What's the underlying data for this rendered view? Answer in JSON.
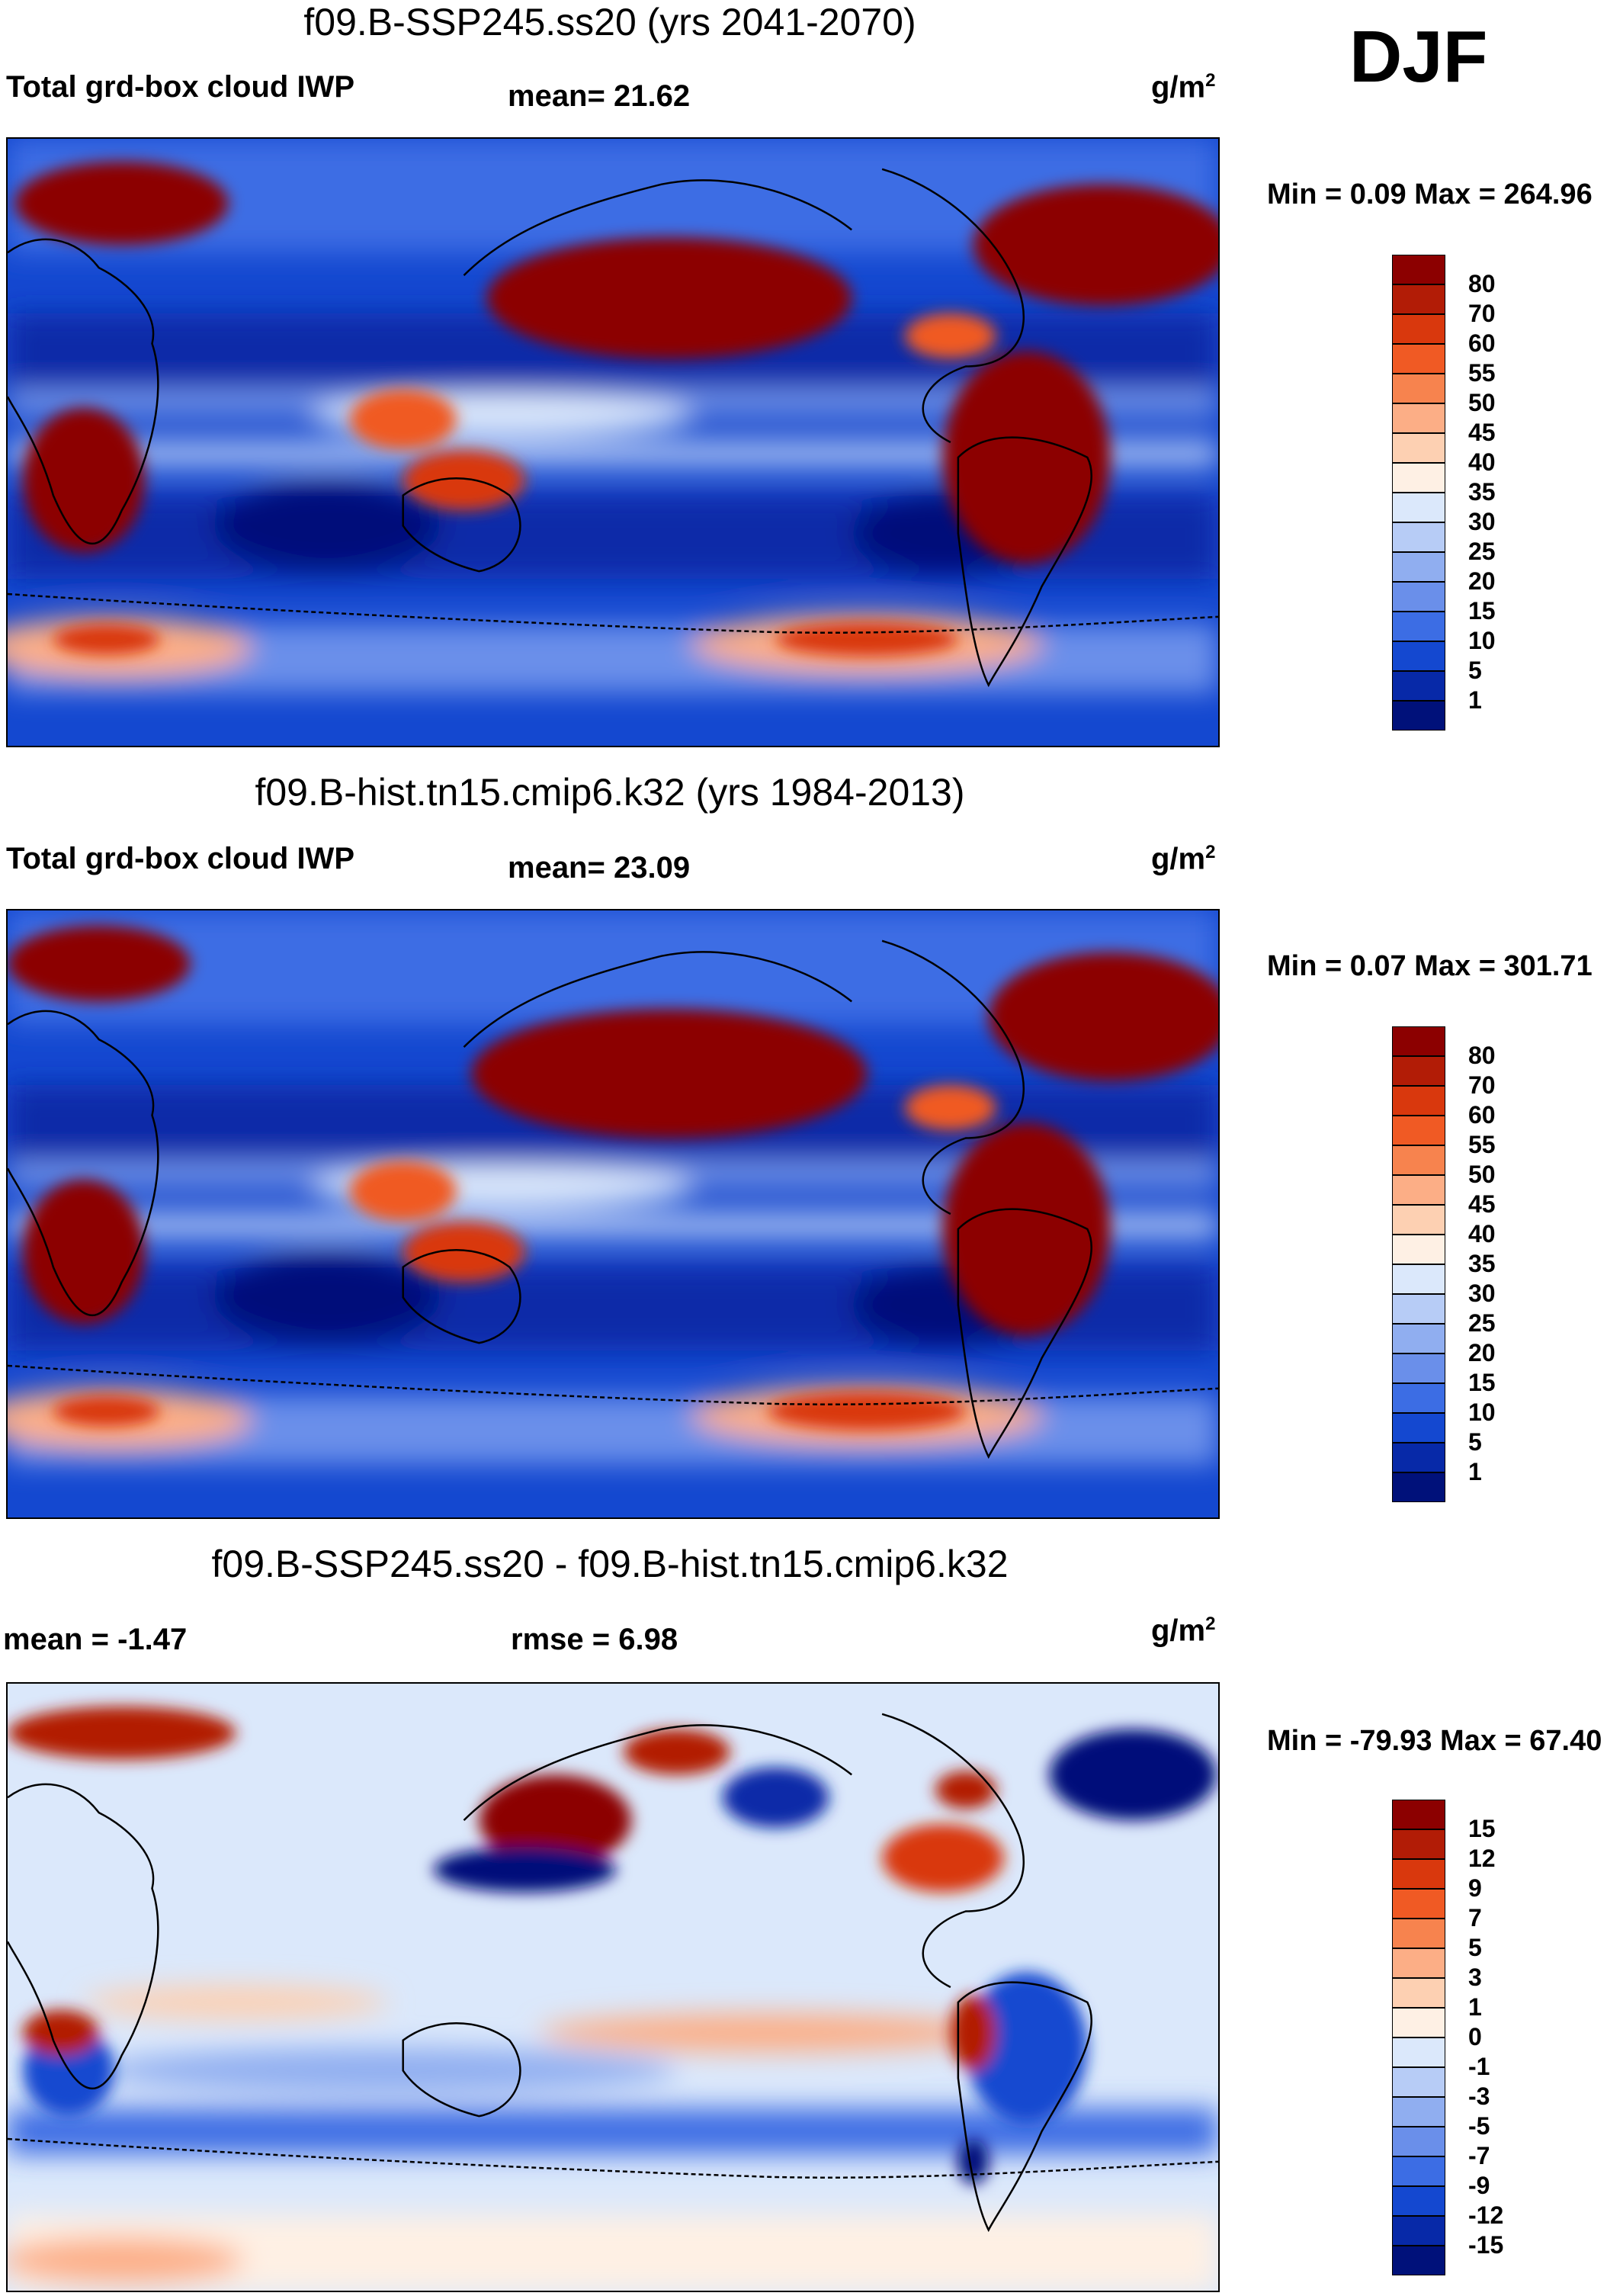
{
  "season": "DJF",
  "units_label": "g/m",
  "units_sup": "2",
  "panels": [
    {
      "title": "f09.B-SSP245.ss20 (yrs 2041-2070)",
      "left_label": "Total grd-box cloud IWP",
      "mid_label": "mean=  21.62",
      "minmax": "Min =   0.09 Max = 264.96",
      "levels": [
        "80",
        "70",
        "60",
        "55",
        "50",
        "45",
        "40",
        "35",
        "30",
        "25",
        "20",
        "15",
        "10",
        "5",
        "1"
      ],
      "colors": [
        "#8c0000",
        "#b21c06",
        "#d9380d",
        "#f05a24",
        "#f7834e",
        "#fcae86",
        "#fdd0b2",
        "#fef0e4",
        "#dbe8fb",
        "#b7ccf6",
        "#90aef0",
        "#6a8fea",
        "#3c6de4",
        "#1448d0",
        "#0729a8",
        "#00117a"
      ]
    },
    {
      "title": "f09.B-hist.tn15.cmip6.k32 (yrs 1984-2013)",
      "left_label": "Total grd-box cloud IWP",
      "mid_label": "mean=  23.09",
      "minmax": "Min =   0.07 Max = 301.71",
      "levels": [
        "80",
        "70",
        "60",
        "55",
        "50",
        "45",
        "40",
        "35",
        "30",
        "25",
        "20",
        "15",
        "10",
        "5",
        "1"
      ],
      "colors": [
        "#8c0000",
        "#b21c06",
        "#d9380d",
        "#f05a24",
        "#f7834e",
        "#fcae86",
        "#fdd0b2",
        "#fef0e4",
        "#dbe8fb",
        "#b7ccf6",
        "#90aef0",
        "#6a8fea",
        "#3c6de4",
        "#1448d0",
        "#0729a8",
        "#00117a"
      ]
    },
    {
      "title": "f09.B-SSP245.ss20 - f09.B-hist.tn15.cmip6.k32",
      "left_label": "mean =  -1.47",
      "mid_label": "rmse =    6.98",
      "minmax": "Min = -79.93 Max =  67.40",
      "levels": [
        "15",
        "12",
        "9",
        "7",
        "5",
        "3",
        "1",
        "0",
        "-1",
        "-3",
        "-5",
        "-7",
        "-9",
        "-12",
        "-15"
      ],
      "colors": [
        "#8c0000",
        "#b21c06",
        "#d9380d",
        "#f05a24",
        "#f7834e",
        "#fcae86",
        "#fdd0b2",
        "#fef0e4",
        "#dbe8fb",
        "#b7ccf6",
        "#90aef0",
        "#6a8fea",
        "#3c6de4",
        "#1448d0",
        "#0729a8",
        "#00117a"
      ]
    }
  ]
}
